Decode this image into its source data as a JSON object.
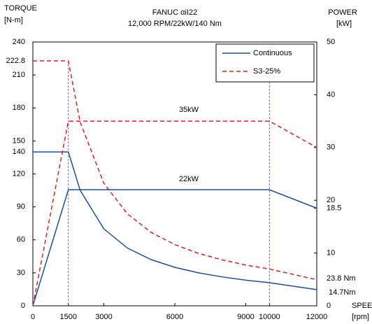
{
  "chart_data": {
    "type": "line",
    "title": "FANUC αiI22",
    "subtitle": "12,000 RPM/22kW/140 Nm",
    "y_label": [
      "TORQUE",
      "[N-m]"
    ],
    "y2_label": [
      "POWER",
      "[kW]"
    ],
    "x_label": [
      "SPEED",
      "[rpm]"
    ],
    "x": [
      0,
      1500,
      2000,
      3000,
      4000,
      5000,
      6000,
      7000,
      8000,
      9000,
      10000,
      12000
    ],
    "series": [
      {
        "name": "Continuous",
        "color": "#1f4e9c",
        "dash": false,
        "values": [
          140,
          140,
          105,
          70,
          52.5,
          42,
          35,
          30,
          26.3,
          23.3,
          21,
          14.7
        ]
      },
      {
        "name": "S3-25%",
        "color": "#e02020",
        "dash": true,
        "values": [
          222.8,
          222.8,
          167.1,
          111.4,
          83.6,
          66.8,
          55.7,
          47.7,
          41.8,
          37.1,
          33.4,
          23.8
        ]
      },
      {
        "color": "#1f4e9c",
        "dash": false,
        "axis": "y2",
        "values": [
          0,
          22,
          22,
          22,
          22,
          22,
          22,
          22,
          22,
          22,
          22,
          18.5
        ]
      },
      {
        "color": "#e02020",
        "dash": true,
        "axis": "y2",
        "values": [
          0,
          35,
          35,
          35,
          35,
          35,
          35,
          35,
          35,
          35,
          35,
          30
        ]
      }
    ],
    "xlim": [
      0,
      12000
    ],
    "xticks": [
      0,
      1500,
      3000,
      6000,
      9000,
      10000,
      12000
    ],
    "ylim": [
      0,
      240
    ],
    "yticks": [
      0,
      30,
      60,
      90,
      120,
      140,
      150,
      180,
      210,
      222.8,
      240
    ],
    "y2lim": [
      0,
      50
    ],
    "y2ticks": [
      0,
      10,
      18.5,
      20,
      30,
      40,
      50
    ],
    "vlines": [
      1500,
      10000
    ],
    "vline_color": "#8a5cc8",
    "legend": "upper right",
    "annotations": [
      "35kW",
      "22kW",
      "23.8 Nm",
      "14.7Nm"
    ]
  }
}
